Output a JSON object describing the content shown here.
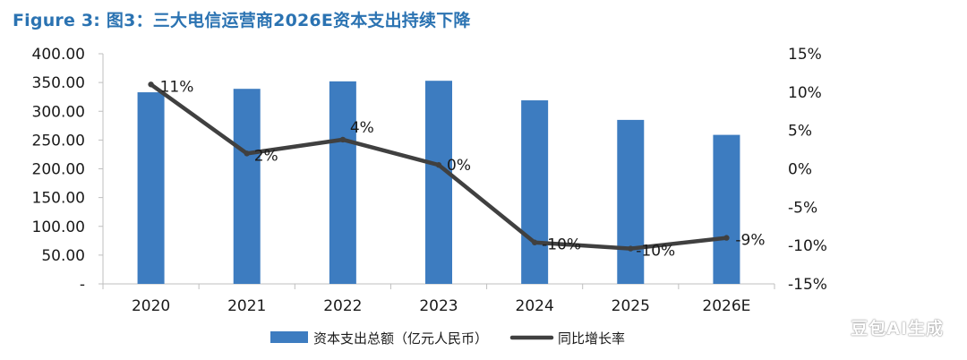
{
  "title": "Figure 3: 图3：三大电信运营商2026E资本支出持续下降",
  "watermark": "豆包AI生成",
  "colors": {
    "title": "#2b73b2",
    "bar": "#3d7cc0",
    "line": "#404040",
    "axis": "#bfbfbf",
    "text": "#1a1a1a"
  },
  "chart_data": {
    "type": "bar+line",
    "title": "Figure 3: 图3：三大电信运营商2026E资本支出持续下降",
    "categories": [
      "2020",
      "2021",
      "2022",
      "2023",
      "2024",
      "2025",
      "2026E"
    ],
    "series": [
      {
        "name": "资本支出总额（亿元人民币）",
        "type": "bar",
        "axis": "left",
        "values": [
          333,
          339,
          352,
          353,
          319,
          285,
          259
        ]
      },
      {
        "name": "同比增长率",
        "type": "line",
        "axis": "right",
        "values": [
          11,
          2,
          3.8,
          0.5,
          -9.6,
          -10.4,
          -9
        ],
        "labels": [
          "11%",
          "2%",
          "4%",
          "0%",
          "-10%",
          "-10%",
          "-9%"
        ]
      }
    ],
    "left_axis": {
      "ylim": [
        0,
        400
      ],
      "ticks": [
        0,
        50,
        100,
        150,
        200,
        250,
        300,
        350,
        400
      ],
      "tick_labels": [
        "-",
        "50.00",
        "100.00",
        "150.00",
        "200.00",
        "250.00",
        "300.00",
        "350.00",
        "400.00"
      ]
    },
    "right_axis": {
      "ylim": [
        -15,
        15
      ],
      "ticks": [
        -15,
        -10,
        -5,
        0,
        5,
        10,
        15
      ],
      "tick_labels": [
        "-15%",
        "-10%",
        "-5%",
        "0%",
        "5%",
        "10%",
        "15%"
      ]
    },
    "legend": {
      "position": "bottom-center",
      "entries": [
        {
          "label": "资本支出总额（亿元人民币）",
          "kind": "bar"
        },
        {
          "label": "同比增长率",
          "kind": "line"
        }
      ]
    },
    "grid": false
  }
}
